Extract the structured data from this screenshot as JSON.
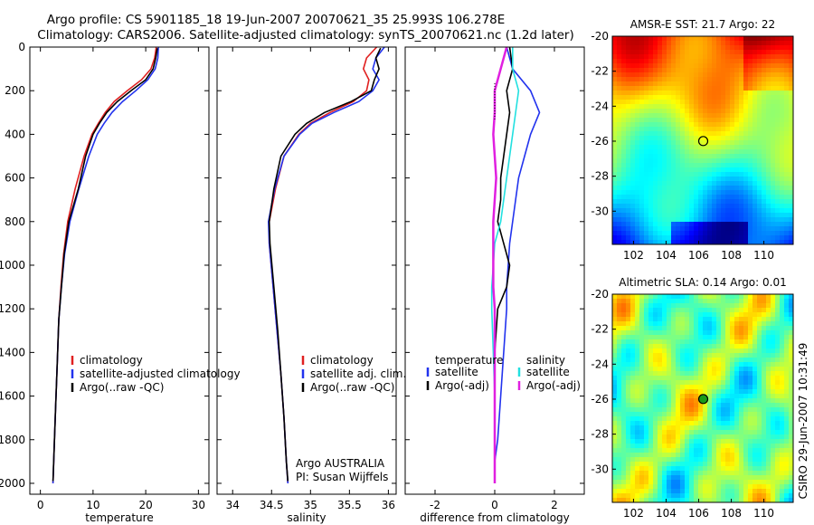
{
  "title": {
    "line1": "Argo profile: CS 5901185_18 19-Jun-2007 20070621_35 25.993S 106.278E",
    "line2": "Climatology: CARS2006. Satellite-adjusted climatology: synTS_20070621.nc (1.2d later)"
  },
  "side_label": "CSIRO 29-Jun-2007 10:31:49",
  "colors": {
    "climatology": "#e02020",
    "satellite": "#2233ee",
    "argo": "#000000",
    "sal_satellite": "#22e0e0",
    "sal_argo": "#e020e0"
  },
  "chart_data": [
    {
      "type": "line",
      "id": "temperature",
      "xlabel": "temperature",
      "xlim": [
        -2,
        32
      ],
      "ylim": [
        2050,
        0
      ],
      "xticks": [
        0,
        10,
        20,
        30
      ],
      "xticklabels": [
        "0",
        "10",
        "20",
        "30"
      ],
      "yticks": [
        0,
        200,
        400,
        600,
        800,
        1000,
        1200,
        1400,
        1600,
        1800,
        2000
      ],
      "yticklabels": [
        "0",
        "200",
        "400",
        "600",
        "800",
        "1000",
        "1200",
        "1400",
        "1600",
        "1800",
        "2000"
      ],
      "legend": [
        "climatology",
        "satellite-adjusted climatology",
        "Argo(..raw -QC)"
      ],
      "legend_position": "lower-right",
      "series": [
        {
          "name": "climatology",
          "color_key": "climatology",
          "x": [
            22.0,
            21.7,
            21.0,
            19.2,
            16.5,
            14.0,
            12.3,
            11.0,
            9.8,
            8.3,
            6.6,
            5.2,
            4.4,
            3.9,
            3.5,
            3.2,
            2.9,
            2.6,
            2.4
          ],
          "y": [
            0,
            50,
            100,
            150,
            200,
            250,
            300,
            350,
            400,
            500,
            650,
            800,
            950,
            1100,
            1250,
            1450,
            1650,
            1850,
            2000
          ]
        },
        {
          "name": "satellite-adjusted climatology",
          "color_key": "satellite",
          "x": [
            22.4,
            22.3,
            21.8,
            20.4,
            18.1,
            15.6,
            13.6,
            12.1,
            10.8,
            9.2,
            7.3,
            5.6,
            4.6,
            4.0,
            3.5,
            3.2,
            2.9,
            2.6,
            2.4
          ],
          "y": [
            0,
            50,
            100,
            150,
            200,
            250,
            300,
            350,
            400,
            500,
            650,
            800,
            950,
            1100,
            1250,
            1450,
            1650,
            1850,
            2000
          ]
        },
        {
          "name": "Argo(..raw -QC)",
          "color_key": "argo",
          "x": [
            22.2,
            21.9,
            21.4,
            20.0,
            17.2,
            14.6,
            12.6,
            11.2,
            10.0,
            8.6,
            7.2,
            5.4,
            4.5,
            4.0,
            3.5,
            3.2,
            2.9,
            2.6,
            2.4
          ],
          "y": [
            5,
            50,
            100,
            150,
            200,
            250,
            300,
            350,
            400,
            500,
            650,
            800,
            950,
            1100,
            1250,
            1450,
            1650,
            1850,
            1990
          ]
        }
      ]
    },
    {
      "type": "line",
      "id": "salinity",
      "xlabel": "salinity",
      "xlim": [
        33.8,
        36.1
      ],
      "ylim": [
        2050,
        0
      ],
      "xticks": [
        34,
        34.5,
        35,
        35.5,
        36
      ],
      "xticklabels": [
        "34",
        "34.5",
        "35",
        "35.5",
        "36"
      ],
      "legend": [
        "climatology",
        "satellite adj. clim.",
        "Argo(..raw -QC)"
      ],
      "legend_position": "lower-right",
      "annotations": [
        "Argo AUSTRALIA",
        "PI: Susan Wijffels"
      ],
      "series": [
        {
          "name": "climatology",
          "color_key": "climatology",
          "x": [
            35.85,
            35.72,
            35.68,
            35.75,
            35.72,
            35.55,
            35.25,
            35.0,
            34.85,
            34.66,
            34.55,
            34.47,
            34.47,
            34.52,
            34.57,
            34.62,
            34.66,
            34.69,
            34.71
          ],
          "y": [
            0,
            50,
            100,
            150,
            200,
            250,
            300,
            350,
            400,
            500,
            650,
            800,
            900,
            1100,
            1300,
            1500,
            1700,
            1900,
            2000
          ]
        },
        {
          "name": "satellite adj. clim.",
          "color_key": "satellite",
          "x": [
            35.95,
            35.84,
            35.8,
            35.88,
            35.8,
            35.62,
            35.3,
            35.02,
            34.86,
            34.66,
            34.54,
            34.46,
            34.47,
            34.52,
            34.57,
            34.62,
            34.66,
            34.69,
            34.71
          ],
          "y": [
            0,
            50,
            100,
            150,
            200,
            250,
            300,
            350,
            400,
            500,
            650,
            800,
            900,
            1100,
            1300,
            1500,
            1700,
            1900,
            2000
          ]
        },
        {
          "name": "Argo(..raw -QC)",
          "color_key": "argo",
          "x": [
            35.9,
            35.84,
            35.88,
            35.82,
            35.78,
            35.52,
            35.18,
            34.95,
            34.8,
            34.62,
            34.53,
            34.47,
            34.48,
            34.53,
            34.58,
            34.62,
            34.66,
            34.69,
            34.71
          ],
          "y": [
            5,
            50,
            100,
            150,
            200,
            250,
            300,
            350,
            400,
            500,
            650,
            800,
            900,
            1100,
            1300,
            1500,
            1700,
            1900,
            1990
          ]
        }
      ]
    },
    {
      "type": "line",
      "id": "difference",
      "xlabel": "difference from climatology",
      "xlim": [
        -3,
        3
      ],
      "ylim": [
        2050,
        0
      ],
      "xticks": [
        -2,
        0,
        2
      ],
      "xticklabels": [
        "-2",
        "0",
        "2"
      ],
      "legend": [
        "temperature",
        "satellite",
        "Argo(-adj)",
        "salinity",
        "satellite",
        "Argo(-adj)"
      ],
      "legend_position": "lower-center",
      "series": [
        {
          "name": "satellite",
          "group": "temperature",
          "color_key": "satellite",
          "x": [
            0.4,
            0.6,
            1.2,
            1.5,
            1.2,
            1.0,
            0.8,
            0.7,
            0.6,
            0.5,
            0.45,
            0.4,
            0.4,
            0.3,
            0.2,
            0.1,
            0.0,
            0.0
          ],
          "y": [
            0,
            100,
            200,
            300,
            400,
            500,
            600,
            700,
            800,
            900,
            1000,
            1100,
            1200,
            1400,
            1600,
            1800,
            1900,
            2000
          ]
        },
        {
          "name": "Argo(-adj)",
          "group": "temperature",
          "color_key": "argo",
          "x": [
            0.5,
            0.6,
            0.4,
            0.5,
            0.4,
            0.3,
            0.2,
            0.2,
            0.1,
            0.3,
            0.5,
            0.4,
            0.1,
            0.0,
            0.0,
            0.0,
            0.0,
            0.0
          ],
          "y": [
            0,
            100,
            200,
            300,
            400,
            500,
            600,
            700,
            800,
            900,
            1000,
            1100,
            1200,
            1400,
            1600,
            1800,
            1900,
            2000
          ]
        },
        {
          "name": "satellite",
          "group": "salinity",
          "color_key": "sal_satellite",
          "x": [
            0.6,
            0.6,
            0.8,
            0.7,
            0.6,
            0.5,
            0.4,
            0.3,
            0.2,
            0.0,
            -0.05,
            -0.1,
            -0.1,
            -0.05,
            0.0,
            0.0,
            0.0,
            0.0
          ],
          "y": [
            0,
            100,
            200,
            300,
            400,
            500,
            600,
            700,
            800,
            900,
            1000,
            1100,
            1200,
            1400,
            1600,
            1800,
            1900,
            2000
          ]
        },
        {
          "name": "Argo(-adj)",
          "group": "salinity",
          "color_key": "sal_argo",
          "x": [
            0.4,
            0.2,
            0.0,
            0.0,
            -0.05,
            0.0,
            0.05,
            0.0,
            -0.05,
            -0.05,
            -0.05,
            -0.05,
            0.0,
            0.0,
            0.0,
            0.0,
            0.0,
            0.0
          ],
          "y": [
            0,
            100,
            200,
            300,
            400,
            500,
            600,
            700,
            800,
            900,
            1000,
            1100,
            1200,
            1400,
            1600,
            1800,
            1900,
            2000
          ]
        }
      ]
    },
    {
      "type": "heatmap",
      "id": "sst_map",
      "title": "AMSR-E SST: 21.7 Argo: 22",
      "xlim": [
        100.7,
        111.8
      ],
      "ylim": [
        -31.9,
        -20
      ],
      "xticks": [
        102,
        104,
        106,
        108,
        110
      ],
      "xticklabels": [
        "102",
        "104",
        "106",
        "108",
        "110"
      ],
      "yticks": [
        -20,
        -22,
        -24,
        -26,
        -28,
        -30
      ],
      "yticklabels": [
        "-20",
        "-22",
        "-24",
        "-26",
        "-28",
        "-30"
      ],
      "marker": {
        "lon": 106.278,
        "lat": -25.993,
        "filled": false
      }
    },
    {
      "type": "heatmap",
      "id": "sla_map",
      "title": "Altimetric SLA: 0.14 Argo: 0.01",
      "xlim": [
        100.7,
        111.8
      ],
      "ylim": [
        -31.9,
        -20
      ],
      "xticks": [
        102,
        104,
        106,
        108,
        110
      ],
      "xticklabels": [
        "102",
        "104",
        "106",
        "108",
        "110"
      ],
      "yticks": [
        -20,
        -22,
        -24,
        -26,
        -28,
        -30
      ],
      "yticklabels": [
        "-20",
        "-22",
        "-24",
        "-26",
        "-28",
        "-30"
      ],
      "marker": {
        "lon": 106.278,
        "lat": -25.993,
        "filled": true
      }
    }
  ]
}
